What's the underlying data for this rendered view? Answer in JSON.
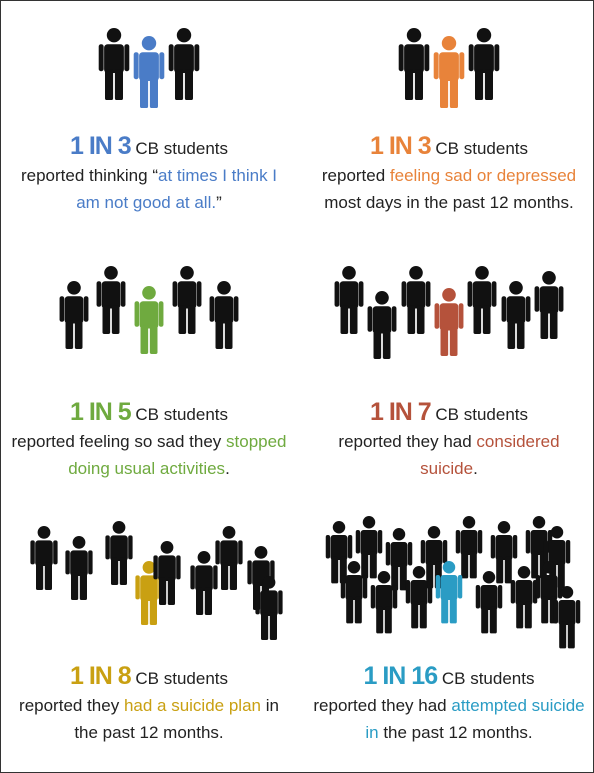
{
  "panels": [
    {
      "ratio": "1 IN 3",
      "subject": "CB students",
      "before": "reported thinking “",
      "highlight": "at times I think I am not good at all.",
      "after": "”",
      "color": "#4a7cc7"
    },
    {
      "ratio": "1 IN 3",
      "subject": "CB students",
      "before": "reported ",
      "highlight": "feeling sad or depressed",
      "after": " most days in the past 12 months.",
      "color": "#e8833a"
    },
    {
      "ratio": "1 IN 5",
      "subject": "CB students",
      "before": "reported feeling so sad they ",
      "highlight": "stopped doing usual activities",
      "after": ".",
      "color": "#6faa3f"
    },
    {
      "ratio": "1 IN 7",
      "subject": "CB students",
      "before": "reported they had ",
      "highlight": "considered suicide",
      "after": ".",
      "color": "#b5523b"
    },
    {
      "ratio": "1 IN 8",
      "subject": "CB students",
      "before": "reported they ",
      "highlight": "had a suicide plan",
      "after": " in the past 12 months.",
      "color": "#c9a012"
    },
    {
      "ratio": "1 IN 16",
      "subject": "CB students",
      "before": "reported they had ",
      "highlight": "attempted suicide in",
      "after": " the past 12 months.",
      "color": "#2a9cc4"
    }
  ]
}
